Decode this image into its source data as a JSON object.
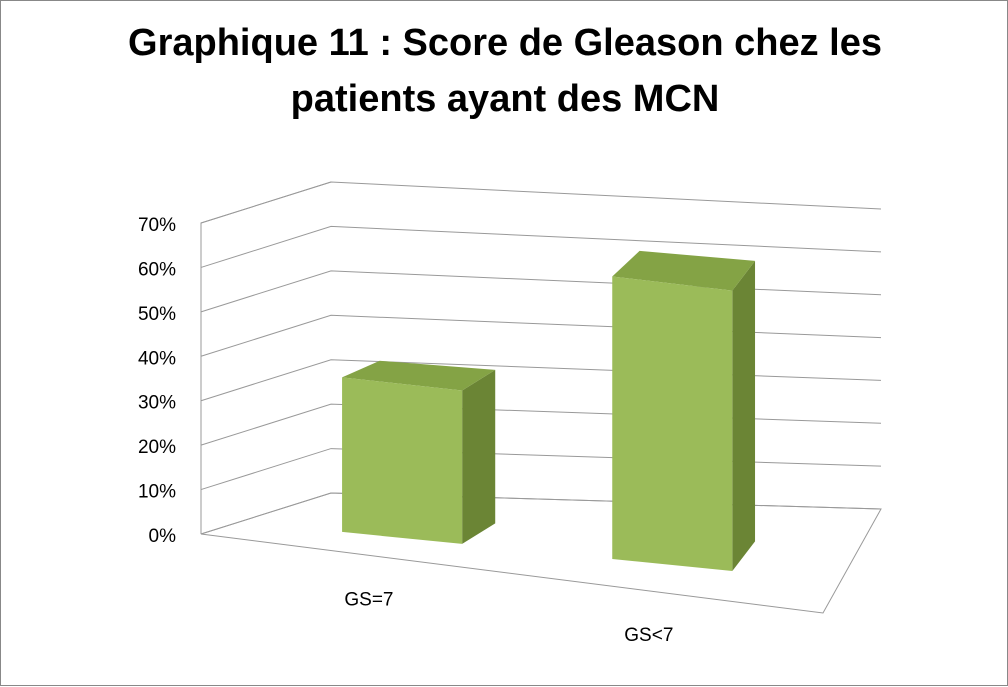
{
  "chart_data": {
    "type": "bar3d",
    "title": "Graphique 11 : Score de Gleason chez les patients ayant des MCN",
    "categories": [
      "GS=7",
      "GS<7"
    ],
    "values": [
      35,
      65
    ],
    "color": "#9bbb59",
    "ylim": [
      0,
      70
    ],
    "yticks": [
      {
        "value": 0,
        "label": "0%"
      },
      {
        "value": 10,
        "label": "10%"
      },
      {
        "value": 20,
        "label": "20%"
      },
      {
        "value": 30,
        "label": "30%"
      },
      {
        "value": 40,
        "label": "40%"
      },
      {
        "value": 50,
        "label": "50%"
      },
      {
        "value": 60,
        "label": "60%"
      },
      {
        "value": 70,
        "label": "70%"
      }
    ],
    "grid": true
  }
}
